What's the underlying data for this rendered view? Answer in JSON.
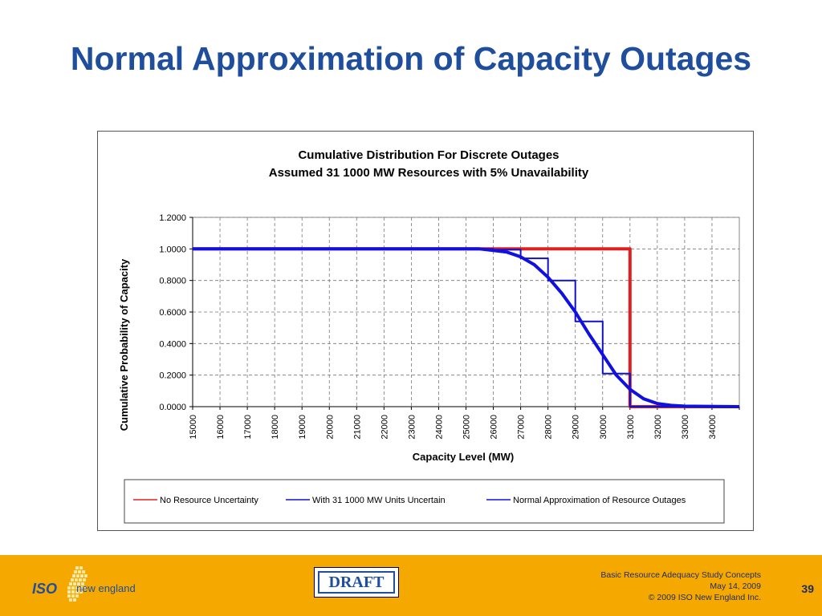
{
  "slide": {
    "title": "Normal Approximation of Capacity Outages"
  },
  "footer": {
    "logo_iso": "ISO",
    "logo_ne": "new england",
    "draft_label": "DRAFT",
    "line1": "Basic Resource Adequacy Study Concepts",
    "line2": "May 14, 2009",
    "line3": "© 2009 ISO New England Inc.",
    "page_number": "39"
  },
  "colors": {
    "title": "#1f4e9c",
    "footer_bg": "#f5a800",
    "no_uncertainty": "#e02020",
    "units_uncertain": "#1010c8",
    "normal_approx": "#1010e0"
  },
  "chart_data": {
    "type": "line",
    "title": "Cumulative Distribution For Discrete Outages",
    "subtitle": "Assumed 31 1000 MW Resources with 5% Unavailability",
    "xlabel": "Capacity Level (MW)",
    "ylabel": "Cumulative Probability of Capacity",
    "xlim": [
      15000,
      35000
    ],
    "ylim": [
      0,
      1.2
    ],
    "x_ticks": [
      15000,
      16000,
      17000,
      18000,
      19000,
      20000,
      21000,
      22000,
      23000,
      24000,
      25000,
      26000,
      27000,
      28000,
      29000,
      30000,
      31000,
      32000,
      33000,
      34000
    ],
    "x_tick_labels": [
      "15000",
      "16000",
      "17000",
      "18000",
      "19000",
      "20000",
      "21000",
      "22000",
      "23000",
      "24000",
      "25000",
      "26000",
      "27000",
      "28000",
      "29000",
      "30000",
      "31000",
      "32000",
      "33000",
      "34000"
    ],
    "y_ticks": [
      0,
      0.2,
      0.4,
      0.6,
      0.8,
      1.0,
      1.2
    ],
    "y_tick_labels": [
      "0.0000",
      "0.2000",
      "0.4000",
      "0.6000",
      "0.8000",
      "1.0000",
      "1.2000"
    ],
    "grid": true,
    "legend_position": "bottom",
    "series": [
      {
        "name": "No Resource Uncertainty",
        "color": "#e02020",
        "style": "thick",
        "x": [
          15000,
          31000,
          31000,
          35000
        ],
        "y": [
          1.0,
          1.0,
          0.0,
          0.0
        ]
      },
      {
        "name": "With 31 1000 MW Units Uncertain",
        "color": "#1010c8",
        "style": "step",
        "x": [
          15000,
          26000,
          26000,
          27000,
          27000,
          28000,
          28000,
          29000,
          29000,
          30000,
          30000,
          31000,
          31000,
          35000
        ],
        "y": [
          1.0,
          1.0,
          0.995,
          0.995,
          0.94,
          0.94,
          0.8,
          0.8,
          0.54,
          0.54,
          0.21,
          0.21,
          0.0,
          0.0
        ]
      },
      {
        "name": "Normal Approximation of Resource Outages",
        "color": "#1010e0",
        "style": "thick",
        "x": [
          15000,
          25500,
          26000,
          26500,
          27000,
          27500,
          28000,
          28500,
          29000,
          29500,
          30000,
          30500,
          31000,
          31500,
          32000,
          32500,
          33000,
          35000
        ],
        "y": [
          1.0,
          1.0,
          0.99,
          0.98,
          0.95,
          0.9,
          0.82,
          0.72,
          0.6,
          0.46,
          0.33,
          0.2,
          0.11,
          0.05,
          0.02,
          0.008,
          0.003,
          0.0
        ]
      }
    ]
  }
}
